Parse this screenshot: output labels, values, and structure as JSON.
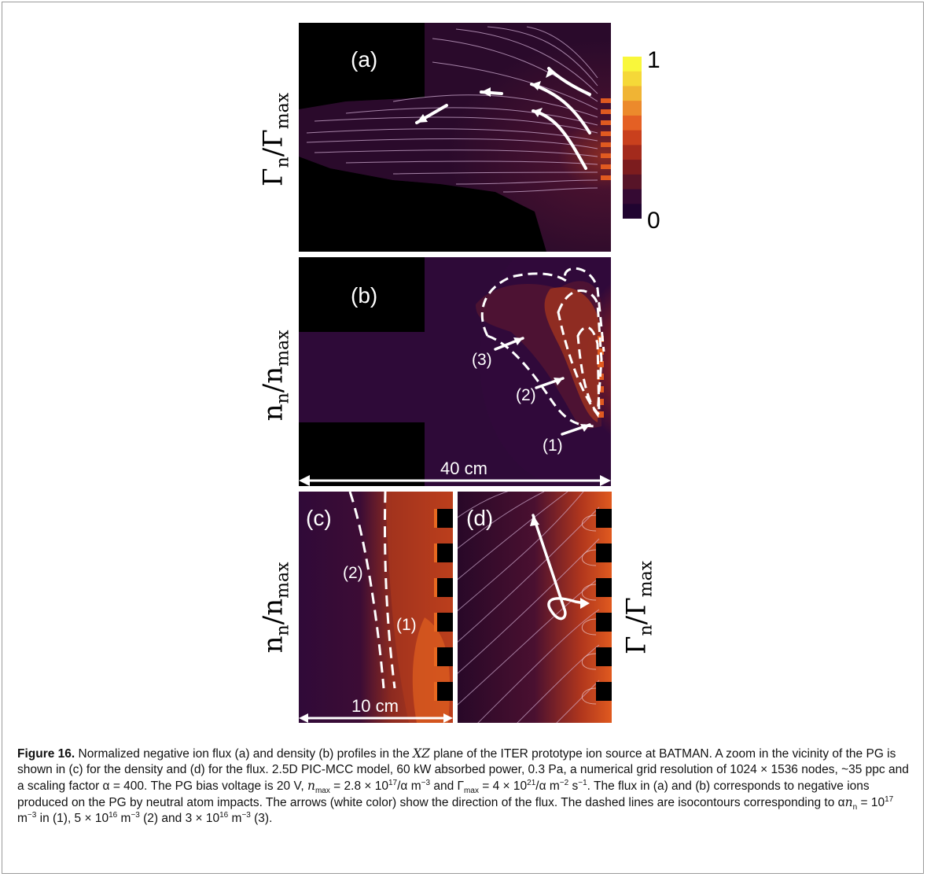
{
  "figure": {
    "panels": {
      "a": {
        "letter": "(a)",
        "ylabel_main": "Γ",
        "ylabel_sub": "n",
        "ylabel_div": "/Γ",
        "ylabel_sub2": "max"
      },
      "b": {
        "letter": "(b)",
        "ylabel_main": "n",
        "ylabel_sub": "n",
        "ylabel_div": "/n",
        "ylabel_sub2": "max",
        "regions": [
          "(3)",
          "(2)",
          "(1)"
        ],
        "scale": "40 cm"
      },
      "c": {
        "letter": "(c)",
        "ylabel_main": "n",
        "ylabel_sub": "n",
        "ylabel_div": "/n",
        "ylabel_sub2": "max",
        "regions": [
          "(2)",
          "(1)"
        ],
        "scale": "10 cm"
      },
      "d": {
        "letter": "(d)",
        "ylabel_main": "Γ",
        "ylabel_sub": "n",
        "ylabel_div": "/Γ",
        "ylabel_sub2": "max"
      }
    },
    "colorbar": {
      "max_label": "1",
      "min_label": "0",
      "colors": [
        "#f9f73b",
        "#f5d838",
        "#f0b434",
        "#ec8a2c",
        "#e46024",
        "#c9401d",
        "#a32a1c",
        "#7c1c1e",
        "#571428",
        "#350a33",
        "#200430"
      ]
    }
  },
  "caption": {
    "label": "Figure 16.",
    "text1": " Normalized negative ion flux (a) and density (b) profiles in the ",
    "xz": "XZ",
    "text2": " plane of the ITER prototype ion source at BATMAN. A zoom in the vicinity of the PG is shown in (c) for the density and (d) for the flux. 2.5D PIC-MCC model, 60 kW absorbed power, 0.3 Pa, a numerical grid resolution of 1024 × 1536 nodes, ~35 ppc and a scaling factor α = 400. The PG bias voltage is 20 V, ",
    "nmax": "n",
    "nmax_sub": "max",
    "text3": " = 2.8 × 10",
    "exp17": "17",
    "text4": "/α m",
    "expm3": "−3",
    "text5": " and Γ",
    "gmax_sub": "max",
    "text6": " = 4 × 10",
    "exp21": "21",
    "text7": "/α m",
    "expm2": "−2",
    "text8": " s",
    "expm1": "−1",
    "text9": ". The flux in (a) and (b) corresponds to negative ions produced on the PG by neutral atom impacts. The arrows (white color) show the direction of the flux. The dashed lines are isocontours corresponding to α",
    "nn": "n",
    "nn_sub": "n",
    "text10": " = 10",
    "exp17b": "17",
    "text11": " m",
    "expm3b": "−3",
    "text12": " in (1), 5 × 10",
    "exp16a": "16",
    "text13": " m",
    "expm3c": "−3",
    "text14": " (2) and 3 × 10",
    "exp16b": "16",
    "text15": " m",
    "expm3d": "−3",
    "text16": " (3)."
  }
}
